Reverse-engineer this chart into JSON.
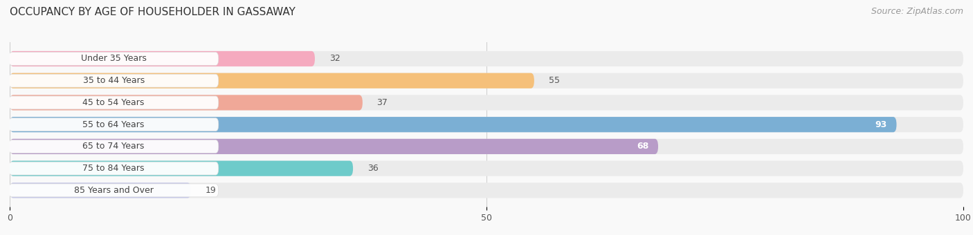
{
  "title": "OCCUPANCY BY AGE OF HOUSEHOLDER IN GASSAWAY",
  "source": "Source: ZipAtlas.com",
  "categories": [
    "Under 35 Years",
    "35 to 44 Years",
    "45 to 54 Years",
    "55 to 64 Years",
    "65 to 74 Years",
    "75 to 84 Years",
    "85 Years and Over"
  ],
  "values": [
    32,
    55,
    37,
    93,
    68,
    36,
    19
  ],
  "bar_colors": [
    "#f5aabf",
    "#f5c07a",
    "#f0a898",
    "#7bafd4",
    "#b89cc8",
    "#6ecbca",
    "#c5c8e8"
  ],
  "track_color": "#ebebeb",
  "xlim": [
    0,
    100
  ],
  "xticks": [
    0,
    50,
    100
  ],
  "background_color": "#f9f9f9",
  "title_fontsize": 11,
  "source_fontsize": 9,
  "bar_height": 0.7,
  "bar_label_fontsize": 9,
  "value_label_fontsize": 9
}
